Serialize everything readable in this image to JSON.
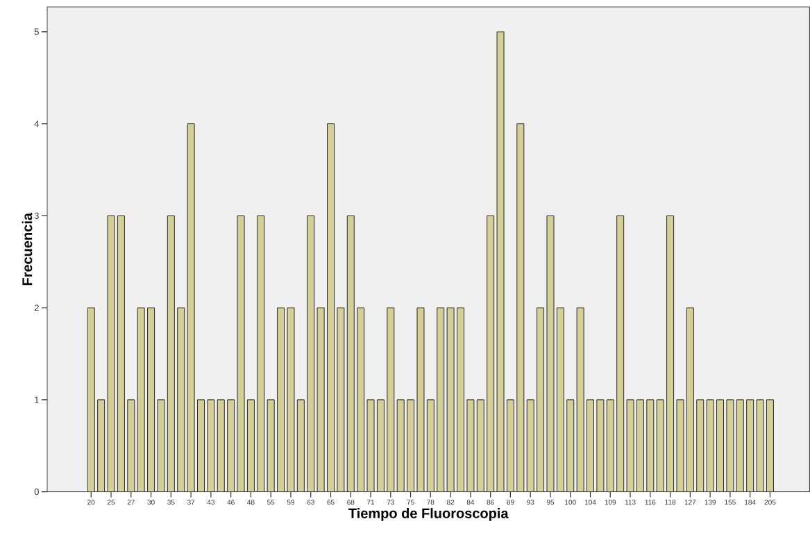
{
  "chart_data": {
    "type": "bar",
    "xlabel": "Tiempo de Fluoroscopia",
    "ylabel": "Frecuencia",
    "categories": [
      "20",
      null,
      "25",
      null,
      "27",
      null,
      "30",
      null,
      "35",
      null,
      "37",
      null,
      "43",
      null,
      "46",
      null,
      "48",
      null,
      "55",
      null,
      "59",
      null,
      "63",
      null,
      "65",
      null,
      "68",
      null,
      "71",
      null,
      "73",
      null,
      "75",
      null,
      "78",
      null,
      "82",
      null,
      "84",
      null,
      "86",
      null,
      "89",
      null,
      "93",
      null,
      "95",
      null,
      "100",
      null,
      "104",
      null,
      "109",
      null,
      "113",
      null,
      "116",
      null,
      "118",
      null,
      "127",
      null,
      "139",
      null,
      "155",
      null,
      "184",
      null,
      "205"
    ],
    "values": [
      2,
      1,
      3,
      3,
      1,
      2,
      2,
      1,
      3,
      2,
      4,
      1,
      1,
      1,
      1,
      3,
      1,
      3,
      1,
      2,
      2,
      1,
      3,
      2,
      4,
      2,
      3,
      2,
      1,
      1,
      2,
      1,
      1,
      2,
      1,
      2,
      2,
      2,
      1,
      1,
      3,
      5,
      1,
      4,
      1,
      2,
      3,
      2,
      1,
      2,
      1,
      1,
      1,
      3,
      1,
      1,
      1,
      1,
      3,
      1,
      2,
      1,
      1,
      1,
      1,
      1,
      1,
      1,
      1
    ],
    "color": "#d3cf96",
    "ylim": [
      0,
      5.27
    ],
    "yticks": [
      0,
      1,
      2,
      3,
      4,
      5
    ],
    "grid": false
  }
}
